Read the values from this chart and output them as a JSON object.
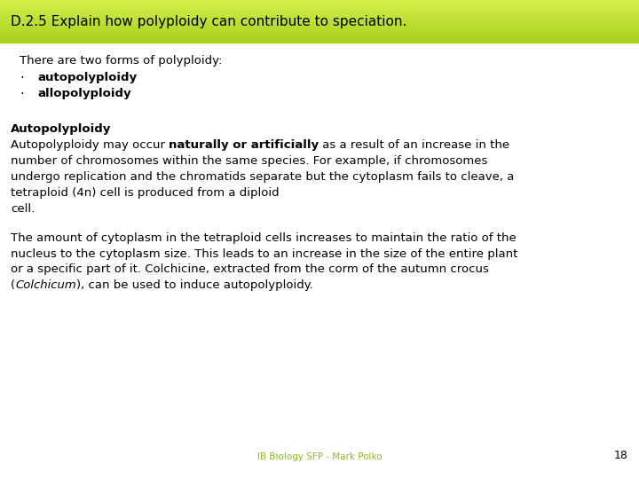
{
  "title": "D.2.5 Explain how polyploidy can contribute to speciation.",
  "title_bg_top": "#d4f04a",
  "title_bg_bottom": "#a8d020",
  "title_font_size": 11,
  "title_text_color": "#000000",
  "bg_color": "#ffffff",
  "footer_text": "IB Biology SFP - Mark Polko",
  "footer_color": "#8ab820",
  "page_number": "18",
  "page_number_color": "#000000",
  "body_font_size": 9.5,
  "intro_line": "There are two forms of polyploidy:",
  "bullet_items": [
    "autopolyploidy",
    "allopolyploidy"
  ],
  "section_heading": "Autopolyploidy",
  "para1_lines": [
    [
      [
        "Autopolyploidy may occur ",
        false,
        false
      ],
      [
        "naturally or artificially",
        true,
        false
      ],
      [
        " as a result of an increase in the",
        false,
        false
      ]
    ],
    [
      [
        "number of chromosomes within the same species. For example, if chromosomes",
        false,
        false
      ]
    ],
    [
      [
        "undergo replication and the chromatids separate but the cytoplasm fails to cleave, a",
        false,
        false
      ]
    ],
    [
      [
        "tetraploid (4n) cell is produced from a diploid",
        false,
        false
      ]
    ],
    [
      [
        "cell.",
        false,
        false
      ]
    ]
  ],
  "para2_lines": [
    [
      [
        "The amount of cytoplasm in the tetraploid cells increases to maintain the ratio of the",
        false,
        false
      ]
    ],
    [
      [
        "nucleus to the cytoplasm size. This leads to an increase in the size of the entire plant",
        false,
        false
      ]
    ],
    [
      [
        "or a specific part of it. Colchicine, extracted from the corm of the autumn crocus",
        false,
        false
      ]
    ],
    [
      [
        "(",
        false,
        false
      ],
      [
        "Colchicum",
        false,
        true
      ],
      [
        "), can be used to induce autopolyploidy.",
        false,
        false
      ]
    ]
  ]
}
